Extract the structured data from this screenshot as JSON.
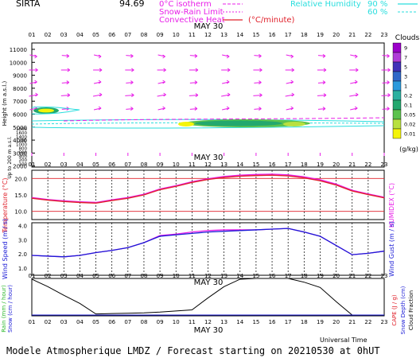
{
  "header": {
    "site": "SIRTA",
    "value": "94.69",
    "legend_isotherm": "0°C isotherm",
    "legend_snow": "Snow-Rain Limit",
    "legend_conv": "Convective Heat",
    "legend_conv_unit": "(°C/minute)",
    "rh_title": "Relative Humidity",
    "rh_90": "90 %",
    "rh_60": "60 %",
    "date": "MAY 30"
  },
  "colors": {
    "magenta": "#e81ee8",
    "cyan": "#2adede",
    "red": "#e0202a",
    "blue": "#1a1ad6",
    "black": "#000000"
  },
  "hours": [
    "01",
    "02",
    "03",
    "04",
    "05",
    "06",
    "07",
    "08",
    "09",
    "10",
    "11",
    "12",
    "13",
    "14",
    "15",
    "16",
    "17",
    "18",
    "19",
    "20",
    "21",
    "22",
    "23"
  ],
  "panel1": {
    "ylabel": "Height  (m a.s.l.)",
    "ylabel2": "Up to 200 m a.s.l.",
    "yticks_upper": [
      "11000",
      "10000",
      "9000",
      "8000",
      "7000",
      "6000",
      "5000",
      "4000",
      "3000",
      "2000"
    ],
    "yticks_lower": [
      "1800",
      "1600",
      "1400",
      "1200",
      "1000",
      "800",
      "600",
      "400",
      "200",
      "100"
    ],
    "date": "MAY 30",
    "clouds_title": "Clouds",
    "clouds_unit": "(g/kg)",
    "clouds_levels": [
      "9",
      "7",
      "5",
      "3",
      "1",
      "0.2",
      "0.1",
      "0.05",
      "0.02",
      "0.01"
    ],
    "clouds_colors": [
      "#9a00c9",
      "#b03cd8",
      "#4030b8",
      "#2f68c8",
      "#2a9adc",
      "#2bb0a0",
      "#23a86e",
      "#5cc24d",
      "#b8e040",
      "#f4f40a"
    ]
  },
  "panel2": {
    "ylabel": "Temperature (°C)",
    "ylabel_right": "HUMIDEX (°C)",
    "yticks": [
      "20.0",
      "15.0",
      "10.0"
    ]
  },
  "panel3": {
    "ylabel": "Wind Speed (m / s)",
    "ylabel_right": "Wind Gust (m / s)",
    "yticks": [
      "4.0",
      "3.0",
      "2.0",
      "1.0"
    ]
  },
  "panel4": {
    "ylabel_rain": "Rain (mm / hour)",
    "ylabel_snow": "Snow (cm / hour)",
    "ylabel_cape": "CAPE (J / g)",
    "ylabel_snowdepth": "Snow Depth (cm)",
    "ylabel_cloudfrac": "Cloud Fraction",
    "date": "MAY 30",
    "xlabel": "Universal Time"
  },
  "footer": {
    "text": "Modele Atmospherique LMDZ / Forecast starting on 20210530 at 0hUT"
  },
  "chart_data": [
    {
      "type": "line",
      "title": "Temperature / Humidex",
      "x": [
        "01",
        "02",
        "03",
        "04",
        "05",
        "06",
        "07",
        "08",
        "09",
        "10",
        "11",
        "12",
        "13",
        "14",
        "15",
        "16",
        "17",
        "18",
        "19",
        "20",
        "21",
        "22",
        "23"
      ],
      "ylim": [
        7.5,
        22.5
      ],
      "series": [
        {
          "name": "Temperature",
          "values": [
            14.0,
            13.4,
            13.0,
            12.7,
            12.5,
            13.3,
            14.0,
            15.0,
            16.6,
            17.6,
            18.8,
            19.7,
            20.3,
            20.7,
            20.9,
            21.0,
            20.8,
            20.2,
            19.3,
            18.0,
            16.2,
            15.1,
            14.1
          ]
        },
        {
          "name": "HUMIDEX",
          "values": [
            14.2,
            13.6,
            13.2,
            12.9,
            12.7,
            13.5,
            14.2,
            15.2,
            16.8,
            17.8,
            19.0,
            19.9,
            20.6,
            21.0,
            21.2,
            21.3,
            21.1,
            20.5,
            19.6,
            18.3,
            16.4,
            15.3,
            14.3
          ]
        }
      ]
    },
    {
      "type": "line",
      "title": "Wind Speed / Wind Gust",
      "x": [
        "01",
        "02",
        "03",
        "04",
        "05",
        "06",
        "07",
        "08",
        "09",
        "10",
        "11",
        "12",
        "13",
        "14",
        "15",
        "16",
        "17",
        "18",
        "19",
        "20",
        "21",
        "22",
        "23"
      ],
      "ylim": [
        0.5,
        4.2
      ],
      "series": [
        {
          "name": "Wind Speed",
          "values": [
            1.9,
            1.85,
            1.8,
            1.9,
            2.1,
            2.25,
            2.45,
            2.8,
            3.25,
            3.35,
            3.45,
            3.55,
            3.6,
            3.65,
            3.7,
            3.75,
            3.8,
            3.55,
            3.25,
            2.6,
            1.95,
            2.05,
            2.2
          ]
        },
        {
          "name": "Wind Gust",
          "values": [
            1.9,
            1.85,
            1.8,
            1.9,
            2.1,
            2.25,
            2.45,
            2.8,
            3.3,
            3.4,
            3.55,
            3.65,
            3.7,
            3.7,
            3.7,
            3.75,
            3.8,
            3.55,
            3.25,
            2.6,
            1.95,
            2.05,
            2.2
          ]
        }
      ]
    },
    {
      "type": "line",
      "title": "Cloud Fraction",
      "x": [
        "01",
        "02",
        "03",
        "04",
        "05",
        "06",
        "07",
        "08",
        "09",
        "10",
        "11",
        "12",
        "13",
        "14",
        "15",
        "16",
        "17",
        "18",
        "19",
        "20",
        "21",
        "22",
        "23"
      ],
      "ylim": [
        0,
        1
      ],
      "series": [
        {
          "name": "Cloud Fraction",
          "values": [
            0.98,
            0.78,
            0.55,
            0.33,
            0.05,
            0.06,
            0.07,
            0.08,
            0.1,
            0.13,
            0.16,
            0.48,
            0.78,
            0.98,
            1.0,
            1.0,
            1.0,
            0.9,
            0.76,
            0.38,
            0.02,
            0.02,
            0.02
          ]
        }
      ]
    }
  ]
}
